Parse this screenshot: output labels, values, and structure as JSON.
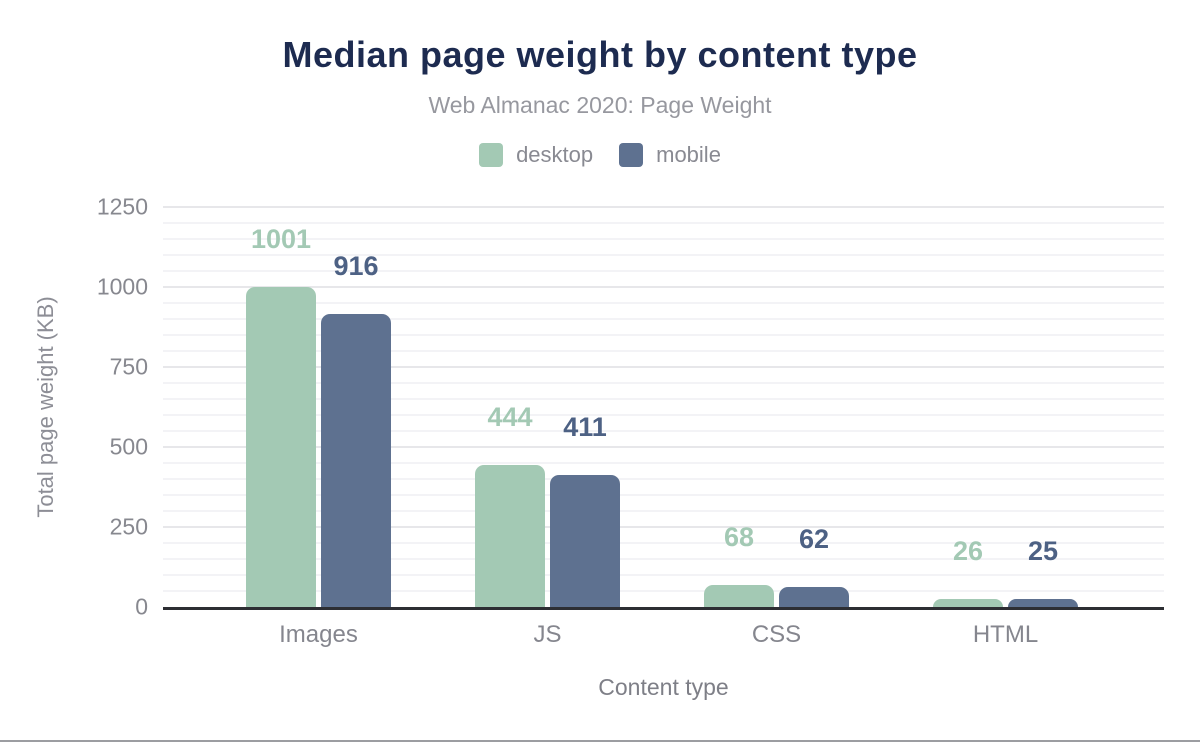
{
  "header": {
    "title": "Median page weight by content type",
    "subtitle": "Web Almanac 2020: Page Weight"
  },
  "chart_data": {
    "type": "bar",
    "title": "Median page weight by content type",
    "subtitle": "Web Almanac 2020: Page Weight",
    "categories": [
      "Images",
      "JS",
      "CSS",
      "HTML"
    ],
    "series": [
      {
        "name": "desktop",
        "color": "#a3c9b4",
        "label_color": "#a3c9b4",
        "values": [
          1001,
          444,
          68,
          26
        ]
      },
      {
        "name": "mobile",
        "color": "#5e7190",
        "label_color": "#4d6184",
        "values": [
          916,
          411,
          62,
          25
        ]
      }
    ],
    "xlabel": "Content type",
    "ylabel": "Total page weight (KB)",
    "ylim": [
      0,
      1250
    ],
    "yticks": [
      0,
      250,
      500,
      750,
      1000,
      1250
    ],
    "minor_tick_step": 50,
    "major_tick_step": 250,
    "grid": true,
    "legend_position": "top",
    "data_labels": true
  },
  "colors": {
    "title": "#1d2b50",
    "subtitle": "#97989f",
    "axis_line": "#2d2e33",
    "tick_label": "#87888f",
    "desktop": "#a3c9b4",
    "mobile": "#5e7190"
  }
}
